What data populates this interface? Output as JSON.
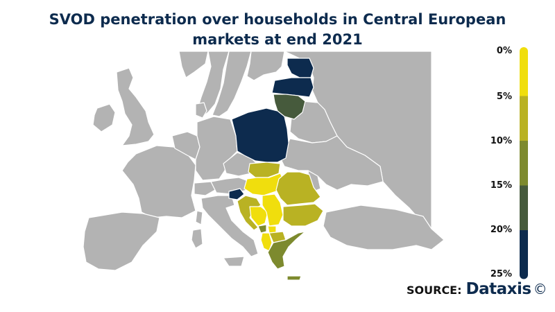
{
  "title_line1": "SVOD penetration over households in Central European",
  "title_line2": "markets at end 2021",
  "legend": {
    "labels": [
      "0%",
      "5%",
      "10%",
      "15%",
      "20%",
      "25%"
    ],
    "colors": [
      "#f0de0d",
      "#b9b223",
      "#7d8a2e",
      "#465a3c",
      "#0d2b4e"
    ]
  },
  "source": {
    "label": "SOURCE:",
    "brand": "Dataxis",
    "copyright": "©"
  },
  "colors": {
    "other_country": "#b3b3b3",
    "border": "#ffffff",
    "band_0_5": "#f0de0d",
    "band_5_10": "#b9b223",
    "band_10_15": "#7d8a2e",
    "band_15_20": "#465a3c",
    "band_20_25": "#0d2b4e"
  }
}
